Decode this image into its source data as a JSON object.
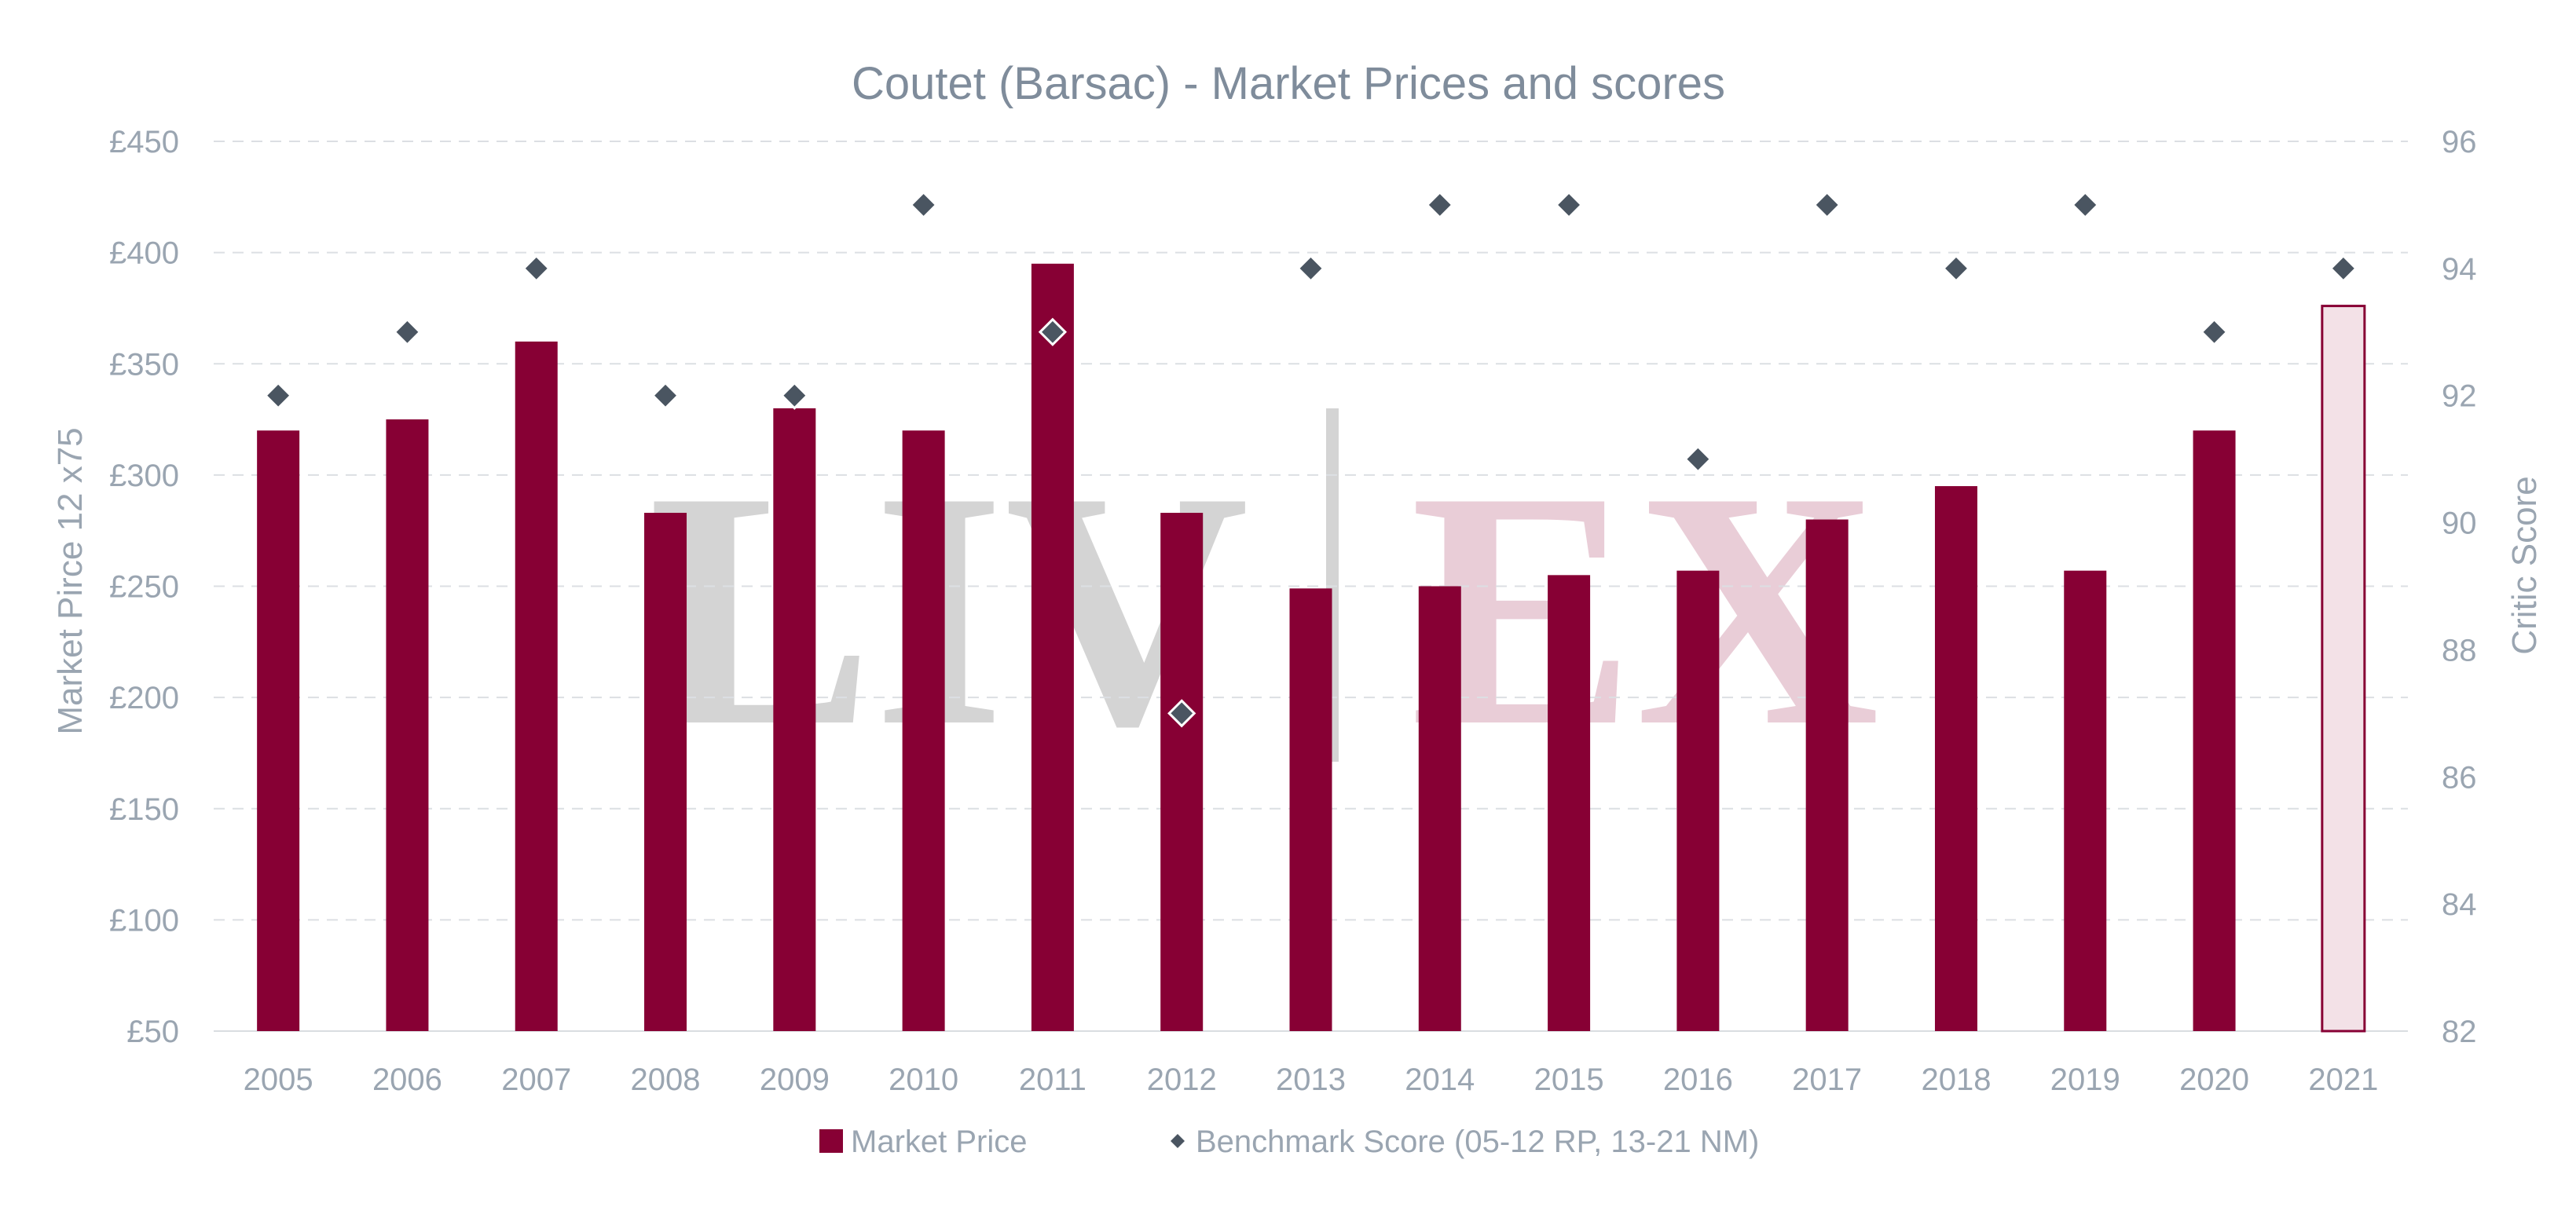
{
  "watermark": {
    "left": "LIV",
    "right": "EX"
  },
  "chart_data": {
    "type": "bar",
    "title": "Coutet (Barsac) - Market Prices and scores",
    "xlabel": "",
    "ylabel": "Market Pirce 12 x75",
    "y2label": "Critic Score",
    "categories": [
      "2005",
      "2006",
      "2007",
      "2008",
      "2009",
      "2010",
      "2011",
      "2012",
      "2013",
      "2014",
      "2015",
      "2016",
      "2017",
      "2018",
      "2019",
      "2020",
      "2021"
    ],
    "ylim": [
      50,
      450
    ],
    "y_ticks": [
      50,
      100,
      150,
      200,
      250,
      300,
      350,
      400,
      450
    ],
    "y_tick_labels": [
      "£50",
      "£100",
      "£150",
      "£200",
      "£250",
      "£300",
      "£350",
      "£400",
      "£450"
    ],
    "y2lim": [
      82,
      96
    ],
    "y2_ticks": [
      82,
      84,
      86,
      88,
      90,
      92,
      94,
      96
    ],
    "y2_tick_labels": [
      "82",
      "84",
      "86",
      "88",
      "90",
      "92",
      "94",
      "96"
    ],
    "grid": true,
    "legend_position": "bottom",
    "series": [
      {
        "name": "Market Price",
        "kind": "bar",
        "axis": "left",
        "color": "#870034",
        "values": [
          320,
          325,
          360,
          283,
          330,
          320,
          395,
          283,
          249,
          250,
          255,
          257,
          280,
          295,
          257,
          320,
          376
        ],
        "highlight_last": {
          "fill": "#f3e1e7",
          "stroke": "#870034"
        }
      },
      {
        "name": "Benchmark Score (05-12 RP, 13-21 NM)",
        "kind": "scatter",
        "axis": "right",
        "marker": "diamond",
        "color": "#4a5561",
        "values": [
          92,
          93,
          94,
          92,
          92,
          95,
          93,
          87,
          94,
          95,
          95,
          91,
          95,
          94,
          95,
          93,
          94
        ]
      }
    ]
  }
}
